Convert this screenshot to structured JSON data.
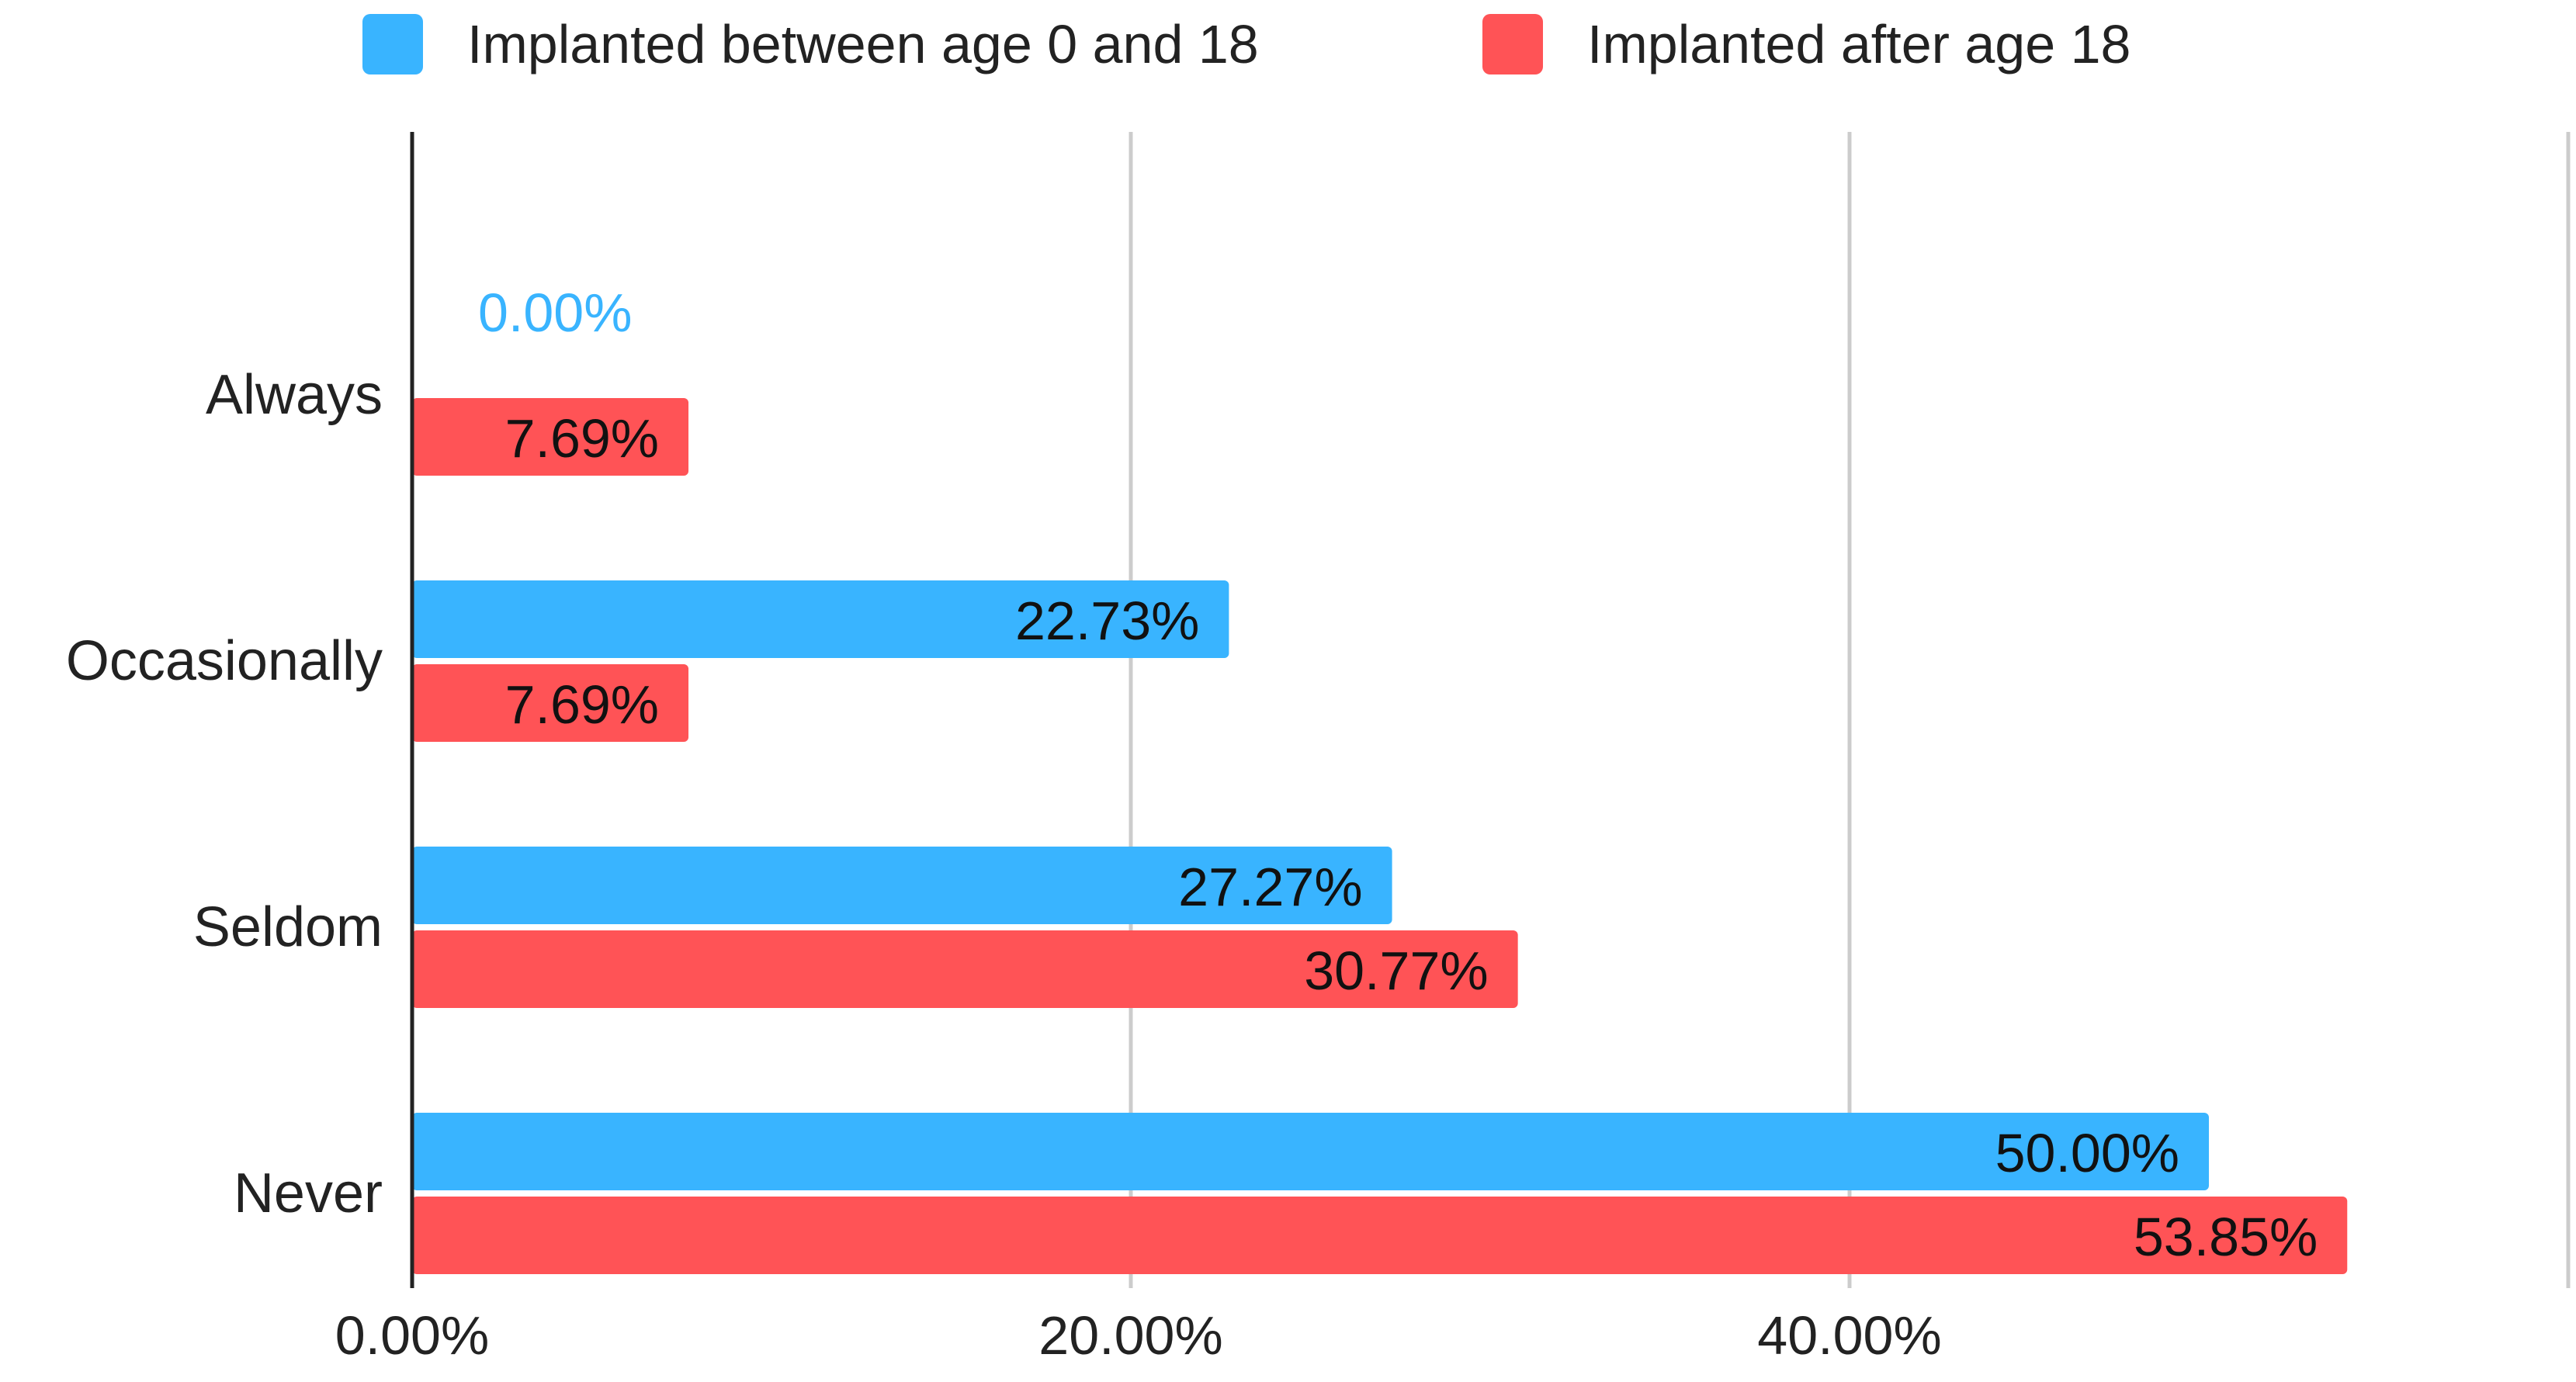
{
  "chart_data": {
    "type": "bar",
    "orientation": "horizontal",
    "categories": [
      "Always",
      "Occasionally",
      "Seldom",
      "Never"
    ],
    "series": [
      {
        "name": "Implanted between age 0 and 18",
        "color": "#39B4FF",
        "values": [
          0.0,
          22.73,
          27.27,
          50.0
        ],
        "labels": [
          "0.00%",
          "22.73%",
          "27.27%",
          "50.00%"
        ]
      },
      {
        "name": "Implanted after age 18",
        "color": "#FF5356",
        "values": [
          7.69,
          7.69,
          30.77,
          53.85
        ],
        "labels": [
          "7.69%",
          "7.69%",
          "30.77%",
          "53.85%"
        ]
      }
    ],
    "x_ticks": [
      "0.00%",
      "20.00%",
      "40.00%"
    ],
    "xlim": [
      0,
      60
    ],
    "grid": true,
    "legend_position": "top"
  }
}
